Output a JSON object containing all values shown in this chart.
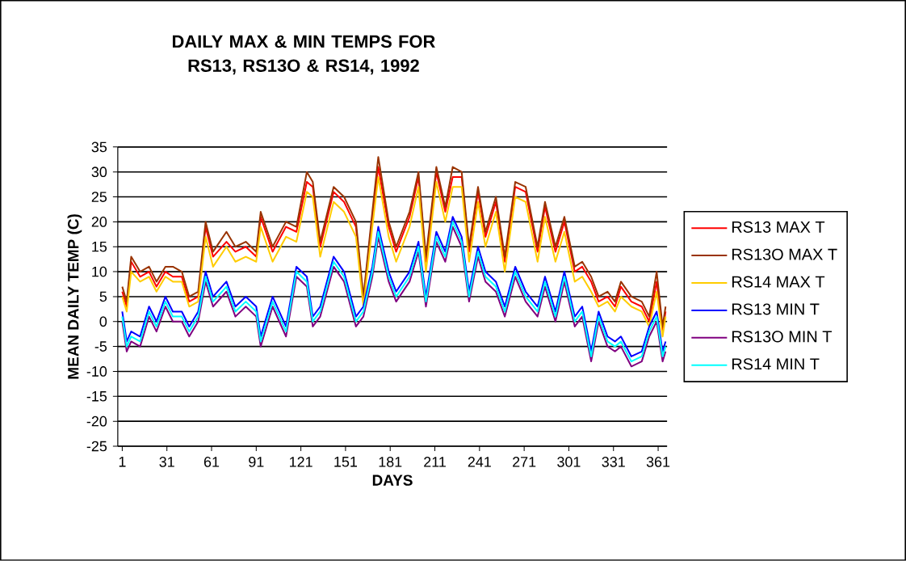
{
  "chart_data": {
    "type": "line",
    "title": "DAILY MAX & MIN TEMPS FOR RS13, RS13O & RS14, 1992",
    "xlabel": "DAYS",
    "ylabel": "MEAN DAILY TEMP (C)",
    "x": [
      1,
      4,
      7,
      13,
      19,
      24,
      30,
      35,
      41,
      46,
      52,
      57,
      62,
      71,
      77,
      84,
      91,
      94,
      102,
      111,
      118,
      125,
      129,
      134,
      143,
      150,
      158,
      163,
      169,
      173,
      180,
      185,
      194,
      200,
      205,
      212,
      218,
      223,
      229,
      234,
      240,
      245,
      252,
      258,
      265,
      272,
      280,
      285,
      292,
      298,
      305,
      310,
      316,
      321,
      327,
      332,
      336,
      343,
      350,
      355,
      360,
      364,
      366
    ],
    "series": [
      {
        "name": "RS13 MAX T",
        "color": "#ff0000",
        "values": [
          6,
          3,
          12,
          9,
          10,
          7,
          10,
          9,
          9,
          4,
          5,
          19,
          13,
          16,
          14,
          15,
          13,
          21,
          14,
          19,
          18,
          28,
          27,
          15,
          26,
          24,
          19,
          4,
          21,
          31,
          19,
          14,
          21,
          29,
          12,
          30,
          22,
          29,
          29,
          14,
          26,
          17,
          24,
          12,
          27,
          26,
          14,
          23,
          14,
          20,
          10,
          11,
          8,
          4,
          5,
          3,
          7,
          4,
          3,
          0,
          8,
          -2,
          2
        ]
      },
      {
        "name": "RS13O MAX T",
        "color": "#993300",
        "values": [
          7,
          4,
          13,
          10,
          11,
          8,
          11,
          11,
          10,
          5,
          6,
          20,
          14,
          18,
          15,
          16,
          14,
          22,
          15,
          20,
          19,
          30,
          28,
          16,
          27,
          25,
          20,
          5,
          22,
          33,
          20,
          15,
          22,
          30,
          13,
          31,
          23,
          31,
          30,
          15,
          27,
          18,
          25,
          13,
          28,
          27,
          15,
          24,
          15,
          21,
          11,
          12,
          9,
          5,
          6,
          4,
          8,
          5,
          4,
          1,
          10,
          -1,
          3
        ]
      },
      {
        "name": "RS14 MAX T",
        "color": "#ffcc00",
        "values": [
          5,
          2,
          10,
          8,
          9,
          6,
          9,
          8,
          8,
          3,
          4,
          17,
          11,
          15,
          12,
          13,
          12,
          19,
          12,
          17,
          16,
          26,
          25,
          13,
          24,
          22,
          17,
          3,
          19,
          29,
          17,
          12,
          19,
          27,
          10,
          28,
          20,
          27,
          27,
          12,
          24,
          15,
          22,
          10,
          25,
          24,
          12,
          21,
          12,
          18,
          8,
          9,
          6,
          3,
          4,
          2,
          5,
          3,
          2,
          -1,
          6,
          -3,
          1
        ]
      },
      {
        "name": "RS13 MIN T",
        "color": "#0000ff",
        "values": [
          2,
          -4,
          -2,
          -3,
          3,
          0,
          5,
          2,
          2,
          -1,
          2,
          10,
          5,
          8,
          3,
          5,
          3,
          -3,
          5,
          -1,
          11,
          9,
          1,
          3,
          13,
          10,
          1,
          3,
          11,
          19,
          10,
          6,
          10,
          16,
          5,
          18,
          14,
          21,
          17,
          6,
          15,
          10,
          8,
          3,
          11,
          6,
          3,
          9,
          2,
          10,
          1,
          3,
          -6,
          2,
          -3,
          -4,
          -3,
          -7,
          -6,
          -1,
          2,
          -6,
          -4
        ]
      },
      {
        "name": "RS13O MIN T",
        "color": "#800080",
        "values": [
          0,
          -6,
          -4,
          -5,
          1,
          -2,
          3,
          0,
          0,
          -3,
          0,
          8,
          3,
          6,
          1,
          3,
          1,
          -5,
          3,
          -3,
          9,
          7,
          -1,
          1,
          11,
          8,
          -1,
          1,
          9,
          17,
          8,
          4,
          8,
          14,
          3,
          16,
          12,
          19,
          15,
          4,
          13,
          8,
          6,
          1,
          9,
          4,
          1,
          7,
          0,
          8,
          -1,
          1,
          -8,
          0,
          -5,
          -6,
          -5,
          -9,
          -8,
          -3,
          0,
          -8,
          -6
        ]
      },
      {
        "name": "RS14 MIN T",
        "color": "#00ffff",
        "values": [
          1,
          -5,
          -3,
          -4,
          2,
          -1,
          4,
          1,
          1,
          -2,
          1,
          9,
          4,
          7,
          2,
          4,
          2,
          -4,
          4,
          -2,
          10,
          8,
          0,
          2,
          12,
          9,
          0,
          2,
          10,
          18,
          9,
          5,
          9,
          15,
          4,
          17,
          13,
          20,
          16,
          5,
          14,
          9,
          7,
          2,
          10,
          5,
          2,
          8,
          1,
          9,
          0,
          2,
          -7,
          1,
          -4,
          -5,
          -4,
          -8,
          -7,
          -2,
          1,
          -7,
          -5
        ]
      }
    ],
    "xlim": [
      -2,
      367
    ],
    "xticks": [
      1,
      31,
      61,
      91,
      121,
      151,
      181,
      211,
      241,
      271,
      301,
      331,
      361
    ],
    "ylim": [
      -25,
      35
    ],
    "yticks": [
      -25,
      -20,
      -15,
      -10,
      -5,
      0,
      5,
      10,
      15,
      20,
      25,
      30,
      35
    ],
    "grid": "y",
    "legend": "right",
    "marker": "none",
    "line_style": "solid"
  }
}
